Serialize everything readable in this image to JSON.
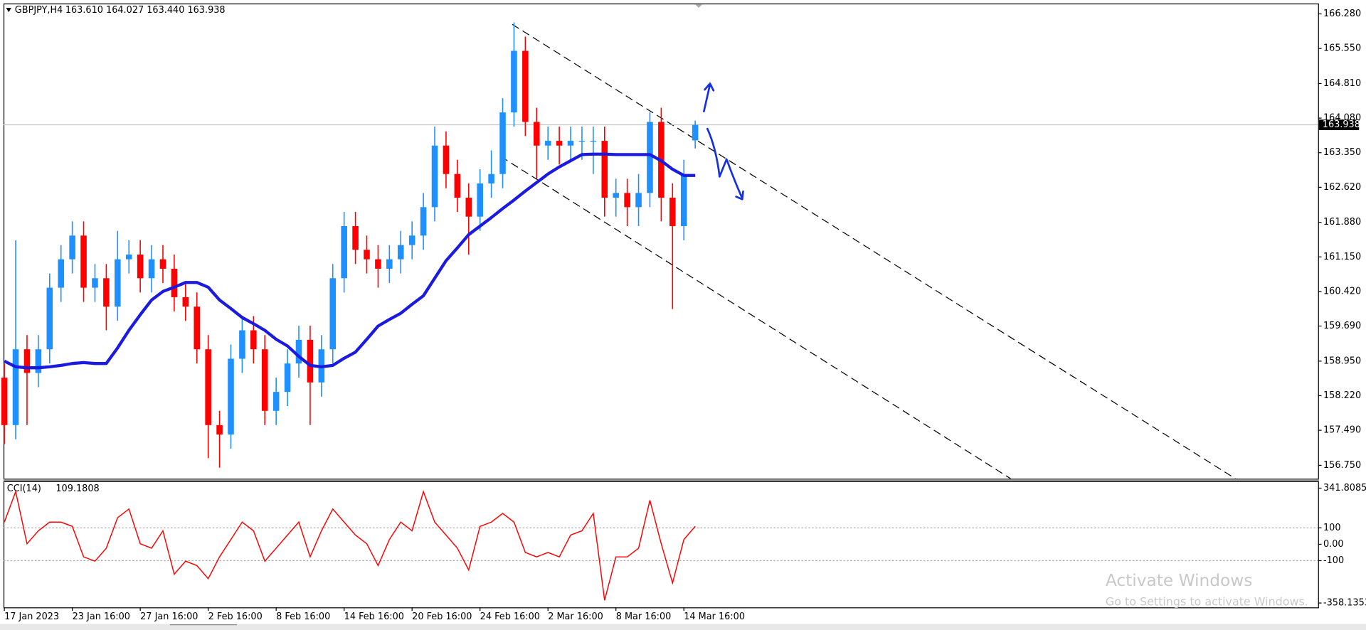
{
  "chart_data": [
    {
      "type": "candlestick",
      "header": "GBPJPY,H4",
      "ohlc_text": "163.610 164.027 163.440 163.938",
      "categories": [
        "17 Jan 2023",
        null,
        null,
        null,
        null,
        null,
        "23 Jan 16:00",
        null,
        null,
        null,
        null,
        null,
        "27 Jan 16:00",
        null,
        null,
        null,
        null,
        null,
        "2 Feb 16:00",
        null,
        null,
        null,
        null,
        null,
        "8 Feb 16:00",
        null,
        null,
        null,
        null,
        null,
        "14 Feb 16:00",
        null,
        null,
        null,
        null,
        null,
        "20 Feb 16:00",
        null,
        null,
        null,
        null,
        null,
        "24 Feb 16:00",
        null,
        null,
        null,
        null,
        null,
        "2 Mar 16:00",
        null,
        null,
        null,
        null,
        null,
        "8 Mar 16:00",
        null,
        null,
        null,
        null,
        null,
        "14 Mar 16:00",
        null
      ],
      "open": [
        158.6,
        157.6,
        159.2,
        158.7,
        159.2,
        160.5,
        161.1,
        161.6,
        160.5,
        160.7,
        160.1,
        161.1,
        161.2,
        160.7,
        161.1,
        160.9,
        160.3,
        160.1,
        159.2,
        157.6,
        157.4,
        159.0,
        159.6,
        159.2,
        157.9,
        158.3,
        158.9,
        159.4,
        158.5,
        159.2,
        160.7,
        161.8,
        161.3,
        161.1,
        160.9,
        161.1,
        161.4,
        161.6,
        162.2,
        163.5,
        162.9,
        162.4,
        162.0,
        162.7,
        162.9,
        164.2,
        165.5,
        164.0,
        163.5,
        163.6,
        163.5,
        163.6,
        163.6,
        163.6,
        162.4,
        162.5,
        162.2,
        162.5,
        164.0,
        162.4,
        161.8,
        163.61
      ],
      "high": [
        158.9,
        161.5,
        159.5,
        159.5,
        160.8,
        161.4,
        161.9,
        161.9,
        161.0,
        161.0,
        161.7,
        161.5,
        161.5,
        161.4,
        161.4,
        161.2,
        160.6,
        160.4,
        159.5,
        157.9,
        159.3,
        159.9,
        159.9,
        159.5,
        158.6,
        159.2,
        159.7,
        159.7,
        159.5,
        161.0,
        162.1,
        162.1,
        161.6,
        161.4,
        161.4,
        161.7,
        161.9,
        162.5,
        163.9,
        163.8,
        163.2,
        162.7,
        163.0,
        163.4,
        164.5,
        166.1,
        165.8,
        164.3,
        163.9,
        163.9,
        163.9,
        163.9,
        163.9,
        163.9,
        162.8,
        162.8,
        162.9,
        164.2,
        164.3,
        162.7,
        163.2,
        164.027
      ],
      "low": [
        157.2,
        157.3,
        157.6,
        158.4,
        158.9,
        160.2,
        160.8,
        160.2,
        160.2,
        159.6,
        159.8,
        160.8,
        160.4,
        160.4,
        160.6,
        160.0,
        159.8,
        158.9,
        156.9,
        156.7,
        157.1,
        158.7,
        158.9,
        157.6,
        157.6,
        158.0,
        158.6,
        157.6,
        158.2,
        158.9,
        160.4,
        161.0,
        160.8,
        160.5,
        160.6,
        160.8,
        161.1,
        161.3,
        161.9,
        162.6,
        162.1,
        161.2,
        161.7,
        162.4,
        162.6,
        163.9,
        163.7,
        162.8,
        163.2,
        163.1,
        163.2,
        163.2,
        162.9,
        162.0,
        162.0,
        161.8,
        161.8,
        162.2,
        161.9,
        160.05,
        161.5,
        163.44
      ],
      "close": [
        157.6,
        159.2,
        158.7,
        159.2,
        160.5,
        161.1,
        161.6,
        160.5,
        160.7,
        160.1,
        161.1,
        161.2,
        160.7,
        161.1,
        160.9,
        160.3,
        160.1,
        159.2,
        157.6,
        157.4,
        159.0,
        159.6,
        159.2,
        157.9,
        158.3,
        158.9,
        159.4,
        158.5,
        159.2,
        160.7,
        161.8,
        161.3,
        161.1,
        160.9,
        161.1,
        161.4,
        161.6,
        162.2,
        163.5,
        162.9,
        162.4,
        162.0,
        162.7,
        162.9,
        164.2,
        165.5,
        164.0,
        163.5,
        163.6,
        163.5,
        163.6,
        163.6,
        163.6,
        162.4,
        162.5,
        162.2,
        162.5,
        164.0,
        162.4,
        161.8,
        162.9,
        163.938
      ],
      "up_color": "#1e90ff",
      "down_color": "#ff0000",
      "ma_values": [
        158.95,
        158.83,
        158.81,
        158.81,
        158.83,
        158.86,
        158.9,
        158.92,
        158.9,
        158.9,
        159.23,
        159.6,
        159.93,
        160.24,
        160.42,
        160.51,
        160.61,
        160.61,
        160.51,
        160.24,
        160.06,
        159.87,
        159.74,
        159.6,
        159.41,
        159.27,
        159.05,
        158.86,
        158.83,
        158.86,
        159.01,
        159.14,
        159.41,
        159.69,
        159.83,
        159.96,
        160.15,
        160.33,
        160.7,
        161.07,
        161.34,
        161.62,
        161.8,
        161.98,
        162.17,
        162.35,
        162.54,
        162.72,
        162.9,
        163.05,
        163.18,
        163.31,
        163.32,
        163.32,
        163.31,
        163.31,
        163.31,
        163.31,
        163.18,
        163.0,
        162.87,
        162.87
      ],
      "ma_color": "#1a1ae0",
      "ylim": [
        156.47,
        166.5
      ],
      "yticks": [
        {
          "value": 166.28,
          "label": "166.280"
        },
        {
          "value": 165.55,
          "label": "165.550"
        },
        {
          "value": 164.81,
          "label": "164.810"
        },
        {
          "value": 164.08,
          "label": "164.080"
        },
        {
          "value": 163.35,
          "label": "163.350"
        },
        {
          "value": 162.62,
          "label": "162.620"
        },
        {
          "value": 161.88,
          "label": "161.880"
        },
        {
          "value": 161.15,
          "label": "161.150"
        },
        {
          "value": 160.42,
          "label": "160.420"
        },
        {
          "value": 159.69,
          "label": "159.690"
        },
        {
          "value": 158.95,
          "label": "158.950"
        },
        {
          "value": 158.22,
          "label": "158.220"
        },
        {
          "value": 157.49,
          "label": "157.490"
        },
        {
          "value": 156.75,
          "label": "156.750"
        }
      ],
      "last_price": {
        "value": 163.938,
        "label": "163.938"
      },
      "watermark": [
        "Activate Windows",
        "Go to Settings to activate Windows."
      ]
    },
    {
      "type": "line",
      "title": "CCI(14)",
      "color": "#ff0000",
      "values": [
        135,
        321,
        3,
        82,
        135,
        135,
        109,
        -77,
        -103,
        -24,
        162,
        215,
        3,
        -24,
        82,
        -183,
        -103,
        -130,
        -210,
        -77,
        29,
        135,
        82,
        -103,
        -24,
        56,
        135,
        -77,
        82,
        215,
        135,
        56,
        3,
        -130,
        29,
        135,
        82,
        321,
        135,
        56,
        -24,
        -157,
        109,
        135,
        188,
        135,
        -50,
        -77,
        -50,
        -77,
        56,
        82,
        188,
        -342,
        -77,
        -77,
        -24,
        268,
        3,
        -236,
        29,
        109.1808
      ],
      "ylim": [
        -358.1353,
        341.8085
      ],
      "yticks": [
        341.8085,
        100,
        {
          "value": 0,
          "label": "0.00"
        },
        -100,
        -358.1353
      ],
      "levels": [
        100,
        -100
      ]
    }
  ]
}
